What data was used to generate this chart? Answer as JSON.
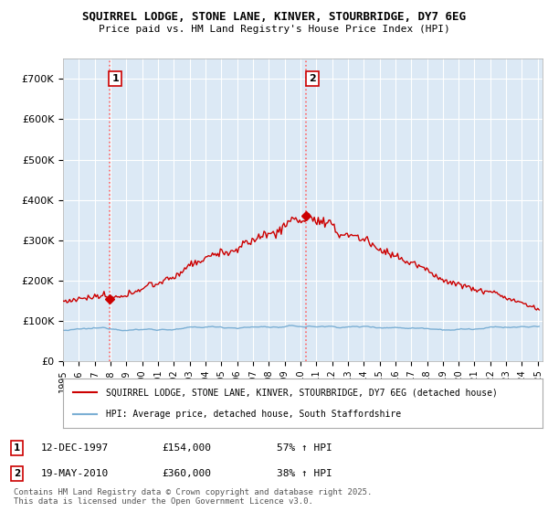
{
  "title": "SQUIRREL LODGE, STONE LANE, KINVER, STOURBRIDGE, DY7 6EG",
  "subtitle": "Price paid vs. HM Land Registry's House Price Index (HPI)",
  "ylim": [
    0,
    750000
  ],
  "yticks": [
    0,
    100000,
    200000,
    300000,
    400000,
    500000,
    600000,
    700000
  ],
  "ytick_labels": [
    "£0",
    "£100K",
    "£200K",
    "£300K",
    "£400K",
    "£500K",
    "£600K",
    "£700K"
  ],
  "house_color": "#cc0000",
  "hpi_color": "#7bafd4",
  "plot_bg_color": "#dce9f5",
  "purchase1_date": 1997.92,
  "purchase1_price": 154000,
  "purchase2_date": 2010.38,
  "purchase2_price": 360000,
  "legend_house": "SQUIRREL LODGE, STONE LANE, KINVER, STOURBRIDGE, DY7 6EG (detached house)",
  "legend_hpi": "HPI: Average price, detached house, South Staffordshire",
  "footer": "Contains HM Land Registry data © Crown copyright and database right 2025.\nThis data is licensed under the Open Government Licence v3.0.",
  "grid_color": "#ffffff",
  "xlim_start": 1995,
  "xlim_end": 2025.3
}
